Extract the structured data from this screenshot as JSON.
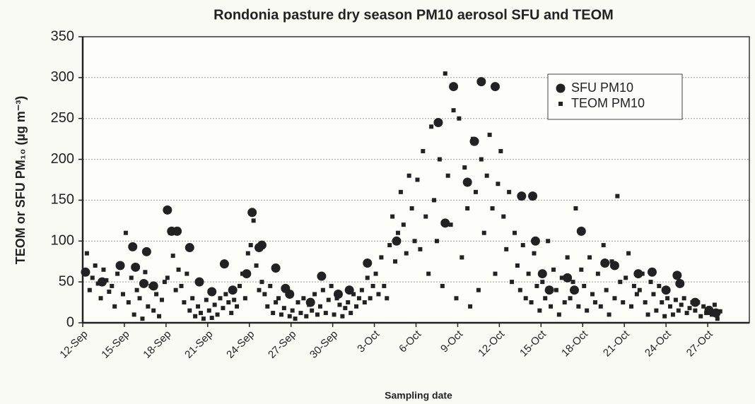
{
  "chart_data": {
    "type": "scatter",
    "title": "Rondonia pasture dry season PM10 aerosol SFU and TEOM",
    "x_label": "Sampling date",
    "y_label": "TEOM or SFU PM₁₀ (µg m⁻³)",
    "xlim": [
      0,
      48
    ],
    "xticks": [
      {
        "value": 0,
        "label": "12-Sep"
      },
      {
        "value": 3,
        "label": "15-Sep"
      },
      {
        "value": 6,
        "label": "18-Sep"
      },
      {
        "value": 9,
        "label": "21-Sep"
      },
      {
        "value": 12,
        "label": "24-Sep"
      },
      {
        "value": 15,
        "label": "27-Sep"
      },
      {
        "value": 18,
        "label": "30-Sep"
      },
      {
        "value": 21,
        "label": "3-Oct"
      },
      {
        "value": 24,
        "label": "6-Oct"
      },
      {
        "value": 27,
        "label": "9-Oct"
      },
      {
        "value": 30,
        "label": "12-Oct"
      },
      {
        "value": 33,
        "label": "15-Oct"
      },
      {
        "value": 36,
        "label": "18-Oct"
      },
      {
        "value": 39,
        "label": "21-Oct"
      },
      {
        "value": 42,
        "label": "24-Oct"
      },
      {
        "value": 45,
        "label": "27-Oct"
      }
    ],
    "ylim": [
      0,
      350
    ],
    "yticks": [
      0,
      50,
      100,
      150,
      200,
      250,
      300,
      350
    ],
    "grid": true,
    "legend": "upper right",
    "series": [
      {
        "name": "SFU PM10",
        "color": "#222222",
        "marker": "circle",
        "x": [
          0.2,
          1.4,
          2.7,
          3.6,
          3.8,
          4.4,
          4.6,
          5.1,
          6.1,
          6.4,
          6.8,
          7.7,
          8.4,
          9.3,
          10.2,
          10.8,
          11.8,
          12.2,
          12.7,
          12.9,
          13.9,
          14.6,
          14.9,
          16.4,
          17.2,
          18.4,
          19.2,
          20.5,
          22.6,
          25.6,
          26.1,
          26.7,
          27.7,
          28.2,
          28.7,
          29.7,
          31.6,
          32.4,
          32.6,
          33.1,
          33.6,
          34.9,
          35.4,
          35.9,
          37.6,
          38.3,
          40.0,
          41.0,
          42.0,
          42.8,
          43.0,
          44.1,
          45.1,
          45.6
        ],
        "values": [
          62,
          50,
          70,
          93,
          68,
          48,
          87,
          45,
          138,
          112,
          112,
          92,
          50,
          38,
          72,
          40,
          60,
          135,
          92,
          95,
          67,
          42,
          35,
          25,
          57,
          35,
          40,
          73,
          100,
          245,
          122,
          289,
          172,
          222,
          295,
          289,
          155,
          155,
          100,
          60,
          40,
          55,
          40,
          112,
          73,
          70,
          60,
          62,
          40,
          58,
          48,
          25,
          15,
          12
        ]
      },
      {
        "name": "TEOM PM10",
        "color": "#222222",
        "marker": "square",
        "x": [
          0.1,
          0.3,
          0.5,
          0.7,
          0.9,
          1.1,
          1.3,
          1.5,
          1.7,
          1.9,
          2.1,
          2.3,
          2.5,
          2.7,
          2.9,
          3.1,
          3.3,
          3.5,
          3.7,
          3.9,
          4.1,
          4.3,
          4.5,
          4.7,
          4.9,
          5.1,
          5.3,
          5.5,
          5.7,
          5.9,
          6.1,
          6.3,
          6.5,
          6.7,
          6.9,
          7.1,
          7.3,
          7.5,
          7.7,
          7.9,
          8.1,
          8.3,
          8.5,
          8.7,
          8.9,
          9.1,
          9.3,
          9.5,
          9.7,
          9.9,
          10.1,
          10.3,
          10.5,
          10.7,
          10.9,
          11.1,
          11.3,
          11.5,
          11.7,
          11.9,
          12.1,
          12.3,
          12.5,
          12.7,
          12.9,
          13.1,
          13.3,
          13.5,
          13.7,
          13.9,
          14.1,
          14.3,
          14.5,
          14.7,
          14.9,
          15.1,
          15.3,
          15.5,
          15.7,
          15.9,
          16.1,
          16.3,
          16.5,
          16.7,
          16.9,
          17.1,
          17.3,
          17.5,
          17.7,
          17.9,
          18.1,
          18.3,
          18.5,
          18.7,
          18.9,
          19.1,
          19.3,
          19.5,
          19.7,
          19.9,
          20.1,
          20.3,
          20.5,
          20.7,
          20.9,
          21.1,
          21.3,
          21.5,
          21.7,
          21.9,
          22.1,
          22.3,
          22.5,
          22.7,
          22.9,
          23.1,
          23.3,
          23.5,
          23.7,
          23.9,
          24.1,
          24.3,
          24.5,
          24.7,
          24.9,
          25.1,
          25.3,
          25.5,
          25.7,
          25.9,
          26.1,
          26.3,
          26.5,
          26.7,
          26.9,
          27.1,
          27.3,
          27.5,
          27.7,
          27.9,
          28.1,
          28.3,
          28.5,
          28.7,
          28.9,
          29.1,
          29.3,
          29.5,
          29.7,
          29.9,
          30.1,
          30.3,
          30.5,
          30.7,
          30.9,
          31.1,
          31.3,
          31.5,
          31.7,
          31.9,
          32.1,
          32.3,
          32.5,
          32.7,
          32.9,
          33.1,
          33.3,
          33.5,
          33.7,
          33.9,
          34.1,
          34.3,
          34.5,
          34.7,
          34.9,
          35.1,
          35.3,
          35.5,
          35.7,
          35.9,
          36.1,
          36.3,
          36.5,
          36.7,
          36.9,
          37.1,
          37.3,
          37.5,
          37.7,
          37.9,
          38.1,
          38.3,
          38.5,
          38.7,
          38.9,
          39.1,
          39.3,
          39.5,
          39.7,
          39.9,
          40.1,
          40.3,
          40.5,
          40.7,
          40.9,
          41.1,
          41.3,
          41.5,
          41.7,
          41.9,
          42.1,
          42.3,
          42.5,
          42.7,
          42.9,
          43.1,
          43.3,
          43.5,
          43.7,
          43.9,
          44.1,
          44.3,
          44.5,
          44.7,
          44.9,
          45.1,
          45.3,
          45.5,
          45.7,
          45.9
        ],
        "values": [
          62,
          85,
          40,
          55,
          70,
          48,
          30,
          65,
          52,
          38,
          45,
          20,
          60,
          72,
          35,
          110,
          25,
          55,
          10,
          40,
          30,
          5,
          62,
          20,
          45,
          15,
          35,
          8,
          28,
          50,
          55,
          110,
          82,
          40,
          65,
          45,
          25,
          60,
          15,
          30,
          8,
          20,
          12,
          5,
          28,
          15,
          6,
          22,
          10,
          30,
          18,
          35,
          25,
          12,
          28,
          20,
          45,
          60,
          30,
          85,
          95,
          125,
          70,
          40,
          50,
          35,
          20,
          45,
          12,
          25,
          30,
          10,
          18,
          40,
          8,
          15,
          5,
          25,
          12,
          30,
          8,
          22,
          15,
          35,
          10,
          20,
          40,
          12,
          28,
          45,
          10,
          30,
          22,
          8,
          18,
          25,
          12,
          35,
          20,
          30,
          40,
          25,
          55,
          30,
          45,
          60,
          35,
          80,
          45,
          30,
          95,
          130,
          75,
          110,
          160,
          120,
          85,
          180,
          140,
          100,
          175,
          90,
          210,
          130,
          60,
          240,
          150,
          100,
          200,
          45,
          305,
          180,
          120,
          260,
          30,
          250,
          80,
          190,
          140,
          20,
          225,
          160,
          40,
          200,
          110,
          180,
          230,
          140,
          60,
          170,
          210,
          130,
          90,
          160,
          50,
          110,
          70,
          40,
          95,
          30,
          60,
          25,
          85,
          45,
          15,
          50,
          30,
          100,
          20,
          65,
          40,
          10,
          55,
          25,
          80,
          30,
          50,
          140,
          20,
          65,
          45,
          15,
          80,
          35,
          25,
          60,
          20,
          95,
          40,
          10,
          75,
          30,
          155,
          50,
          25,
          55,
          85,
          20,
          45,
          35,
          40,
          60,
          25,
          10,
          50,
          35,
          15,
          45,
          25,
          8,
          30,
          20,
          10,
          28,
          15,
          22,
          30,
          12,
          18,
          25,
          15,
          25,
          8,
          20,
          12,
          18,
          10,
          22,
          5,
          14
        ]
      }
    ]
  }
}
